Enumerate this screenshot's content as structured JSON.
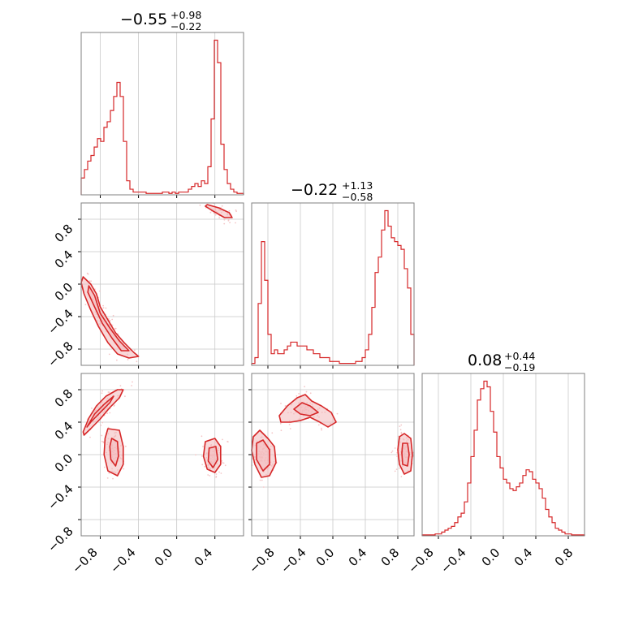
{
  "colors": {
    "line": "#d62728",
    "fill": "#f2b8b9",
    "scatter": "#f4c6c7",
    "grid": "#c9c9c9",
    "frame": "#808080"
  },
  "chart_data": {
    "type": "corner",
    "parameters": [
      {
        "title": {
          "median": "−0.55",
          "plus": "+0.98",
          "minus": "−0.22"
        },
        "range": [
          -1.0,
          0.7
        ],
        "histogram": [
          6,
          9,
          12,
          14,
          17,
          20,
          19,
          24,
          26,
          30,
          35,
          40,
          35,
          19,
          5,
          2,
          1,
          1,
          1,
          1,
          0.5,
          0.5,
          0.5,
          0.5,
          0.5,
          1,
          1,
          0.5,
          1,
          0.5,
          1,
          1,
          1,
          2,
          3,
          4,
          3,
          5,
          4,
          10,
          27,
          55,
          47,
          18,
          9,
          4,
          2,
          1,
          0.5,
          0.5
        ]
      },
      {
        "title": {
          "median": "−0.22",
          "plus": "+1.13",
          "minus": "−0.58"
        },
        "range": [
          -1.0,
          1.0
        ],
        "histogram": [
          0.5,
          2,
          16,
          32,
          22,
          8,
          3,
          4,
          3,
          3,
          4,
          5,
          6,
          6,
          5,
          5,
          5,
          4,
          4,
          3,
          3,
          2,
          2,
          2,
          1,
          1,
          1,
          0.5,
          0.5,
          0.5,
          0.5,
          0.5,
          1,
          1,
          2,
          4,
          8,
          15,
          24,
          28,
          35,
          40,
          36,
          33,
          32,
          31,
          30,
          25,
          20,
          8
        ]
      },
      {
        "title": {
          "median": "0.08",
          "plus": "+0.44",
          "minus": "−0.19"
        },
        "range": [
          -1.0,
          1.0
        ],
        "histogram": [
          0.5,
          0.5,
          0.5,
          0.5,
          1,
          1,
          2,
          3,
          4,
          5,
          7,
          10,
          12,
          18,
          28,
          42,
          56,
          72,
          78,
          82,
          79,
          66,
          55,
          42,
          36,
          30,
          28,
          25,
          24,
          26,
          28,
          32,
          35,
          34,
          30,
          28,
          25,
          20,
          14,
          10,
          7,
          4,
          3,
          2,
          1,
          1,
          0.5,
          0.5,
          0.5,
          0.5
        ]
      }
    ],
    "xticks": [
      [
        "−0.8",
        "−0.4",
        "0.0",
        "0.4"
      ],
      [
        "−0.8",
        "−0.4",
        "0.0",
        "0.4",
        "0.8"
      ],
      [
        "−0.8",
        "−0.4",
        "0.0",
        "0.4",
        "0.8"
      ]
    ],
    "yticks": [
      [
        "0.8",
        "0.4",
        "0.0",
        "−0.4",
        "−0.8"
      ],
      [
        "0.8",
        "0.4",
        "0.0",
        "−0.4",
        "−0.8"
      ]
    ],
    "tick_values": {
      "x0": [
        -0.8,
        -0.4,
        0.0,
        0.4
      ],
      "x1": [
        -0.8,
        -0.4,
        0.0,
        0.4,
        0.8
      ],
      "x2": [
        -0.8,
        -0.4,
        0.0,
        0.4,
        0.8
      ],
      "y1": [
        0.8,
        0.4,
        0.0,
        -0.4,
        -0.8
      ],
      "y2": [
        0.8,
        0.4,
        0.0,
        -0.4,
        -0.8
      ]
    },
    "contours_1_0": [
      [
        [
          0.32,
          0.98
        ],
        [
          0.44,
          0.94
        ],
        [
          0.55,
          0.88
        ],
        [
          0.58,
          0.82
        ],
        [
          0.5,
          0.82
        ],
        [
          0.38,
          0.9
        ],
        [
          0.3,
          0.96
        ]
      ],
      [
        [
          -0.98,
          0.09
        ],
        [
          -0.9,
          0.0
        ],
        [
          -0.84,
          -0.12
        ],
        [
          -0.8,
          -0.28
        ],
        [
          -0.72,
          -0.44
        ],
        [
          -0.64,
          -0.6
        ],
        [
          -0.55,
          -0.72
        ],
        [
          -0.45,
          -0.84
        ],
        [
          -0.4,
          -0.89
        ],
        [
          -0.5,
          -0.91
        ],
        [
          -0.62,
          -0.86
        ],
        [
          -0.72,
          -0.72
        ],
        [
          -0.82,
          -0.52
        ],
        [
          -0.9,
          -0.32
        ],
        [
          -0.97,
          -0.12
        ],
        [
          -1.0,
          0.02
        ]
      ],
      [
        [
          -0.92,
          -0.02
        ],
        [
          -0.86,
          -0.14
        ],
        [
          -0.8,
          -0.36
        ],
        [
          -0.7,
          -0.54
        ],
        [
          -0.6,
          -0.7
        ],
        [
          -0.5,
          -0.82
        ],
        [
          -0.58,
          -0.82
        ],
        [
          -0.68,
          -0.66
        ],
        [
          -0.78,
          -0.48
        ],
        [
          -0.86,
          -0.28
        ],
        [
          -0.93,
          -0.1
        ]
      ]
    ],
    "contours_2_0": [
      [
        [
          -0.98,
          0.28
        ],
        [
          -0.92,
          0.45
        ],
        [
          -0.84,
          0.6
        ],
        [
          -0.74,
          0.72
        ],
        [
          -0.62,
          0.8
        ],
        [
          -0.56,
          0.8
        ],
        [
          -0.6,
          0.7
        ],
        [
          -0.7,
          0.58
        ],
        [
          -0.8,
          0.44
        ],
        [
          -0.9,
          0.32
        ],
        [
          -0.97,
          0.24
        ]
      ],
      [
        [
          -0.94,
          0.34
        ],
        [
          -0.86,
          0.5
        ],
        [
          -0.76,
          0.62
        ],
        [
          -0.66,
          0.72
        ],
        [
          -0.7,
          0.64
        ],
        [
          -0.8,
          0.52
        ],
        [
          -0.9,
          0.4
        ]
      ],
      [
        [
          -0.72,
          0.32
        ],
        [
          -0.6,
          0.3
        ],
        [
          -0.56,
          0.1
        ],
        [
          -0.56,
          -0.12
        ],
        [
          -0.62,
          -0.26
        ],
        [
          -0.72,
          -0.2
        ],
        [
          -0.76,
          0.0
        ],
        [
          -0.75,
          0.2
        ]
      ],
      [
        [
          -0.68,
          0.2
        ],
        [
          -0.62,
          0.16
        ],
        [
          -0.61,
          -0.02
        ],
        [
          -0.64,
          -0.14
        ],
        [
          -0.69,
          -0.06
        ],
        [
          -0.7,
          0.1
        ]
      ],
      [
        [
          0.3,
          0.16
        ],
        [
          0.4,
          0.2
        ],
        [
          0.46,
          0.1
        ],
        [
          0.46,
          -0.12
        ],
        [
          0.4,
          -0.22
        ],
        [
          0.32,
          -0.18
        ],
        [
          0.28,
          -0.02
        ]
      ],
      [
        [
          0.34,
          0.08
        ],
        [
          0.41,
          0.1
        ],
        [
          0.43,
          -0.06
        ],
        [
          0.38,
          -0.16
        ],
        [
          0.33,
          -0.08
        ]
      ]
    ],
    "contours_2_1": [
      [
        [
          -0.98,
          0.22
        ],
        [
          -0.9,
          0.3
        ],
        [
          -0.8,
          0.2
        ],
        [
          -0.72,
          0.1
        ],
        [
          -0.7,
          -0.1
        ],
        [
          -0.78,
          -0.26
        ],
        [
          -0.88,
          -0.28
        ],
        [
          -0.96,
          -0.12
        ],
        [
          -1.0,
          0.05
        ]
      ],
      [
        [
          -0.94,
          0.14
        ],
        [
          -0.86,
          0.18
        ],
        [
          -0.78,
          0.06
        ],
        [
          -0.78,
          -0.12
        ],
        [
          -0.86,
          -0.2
        ],
        [
          -0.94,
          -0.06
        ]
      ],
      [
        [
          -0.66,
          0.48
        ],
        [
          -0.56,
          0.6
        ],
        [
          -0.44,
          0.7
        ],
        [
          -0.34,
          0.74
        ],
        [
          -0.26,
          0.66
        ],
        [
          -0.14,
          0.6
        ],
        [
          -0.02,
          0.52
        ],
        [
          0.04,
          0.4
        ],
        [
          -0.06,
          0.34
        ],
        [
          -0.16,
          0.4
        ],
        [
          -0.28,
          0.46
        ],
        [
          -0.4,
          0.42
        ],
        [
          -0.52,
          0.4
        ],
        [
          -0.64,
          0.4
        ]
      ],
      [
        [
          -0.48,
          0.56
        ],
        [
          -0.38,
          0.64
        ],
        [
          -0.28,
          0.6
        ],
        [
          -0.18,
          0.52
        ],
        [
          -0.28,
          0.48
        ],
        [
          -0.4,
          0.5
        ]
      ],
      [
        [
          0.82,
          0.22
        ],
        [
          0.88,
          0.26
        ],
        [
          0.96,
          0.2
        ],
        [
          0.98,
          0.0
        ],
        [
          0.96,
          -0.2
        ],
        [
          0.88,
          -0.24
        ],
        [
          0.82,
          -0.12
        ],
        [
          0.8,
          0.06
        ]
      ],
      [
        [
          0.86,
          0.14
        ],
        [
          0.92,
          0.14
        ],
        [
          0.94,
          0.0
        ],
        [
          0.92,
          -0.14
        ],
        [
          0.86,
          -0.12
        ],
        [
          0.85,
          0.02
        ]
      ]
    ]
  }
}
